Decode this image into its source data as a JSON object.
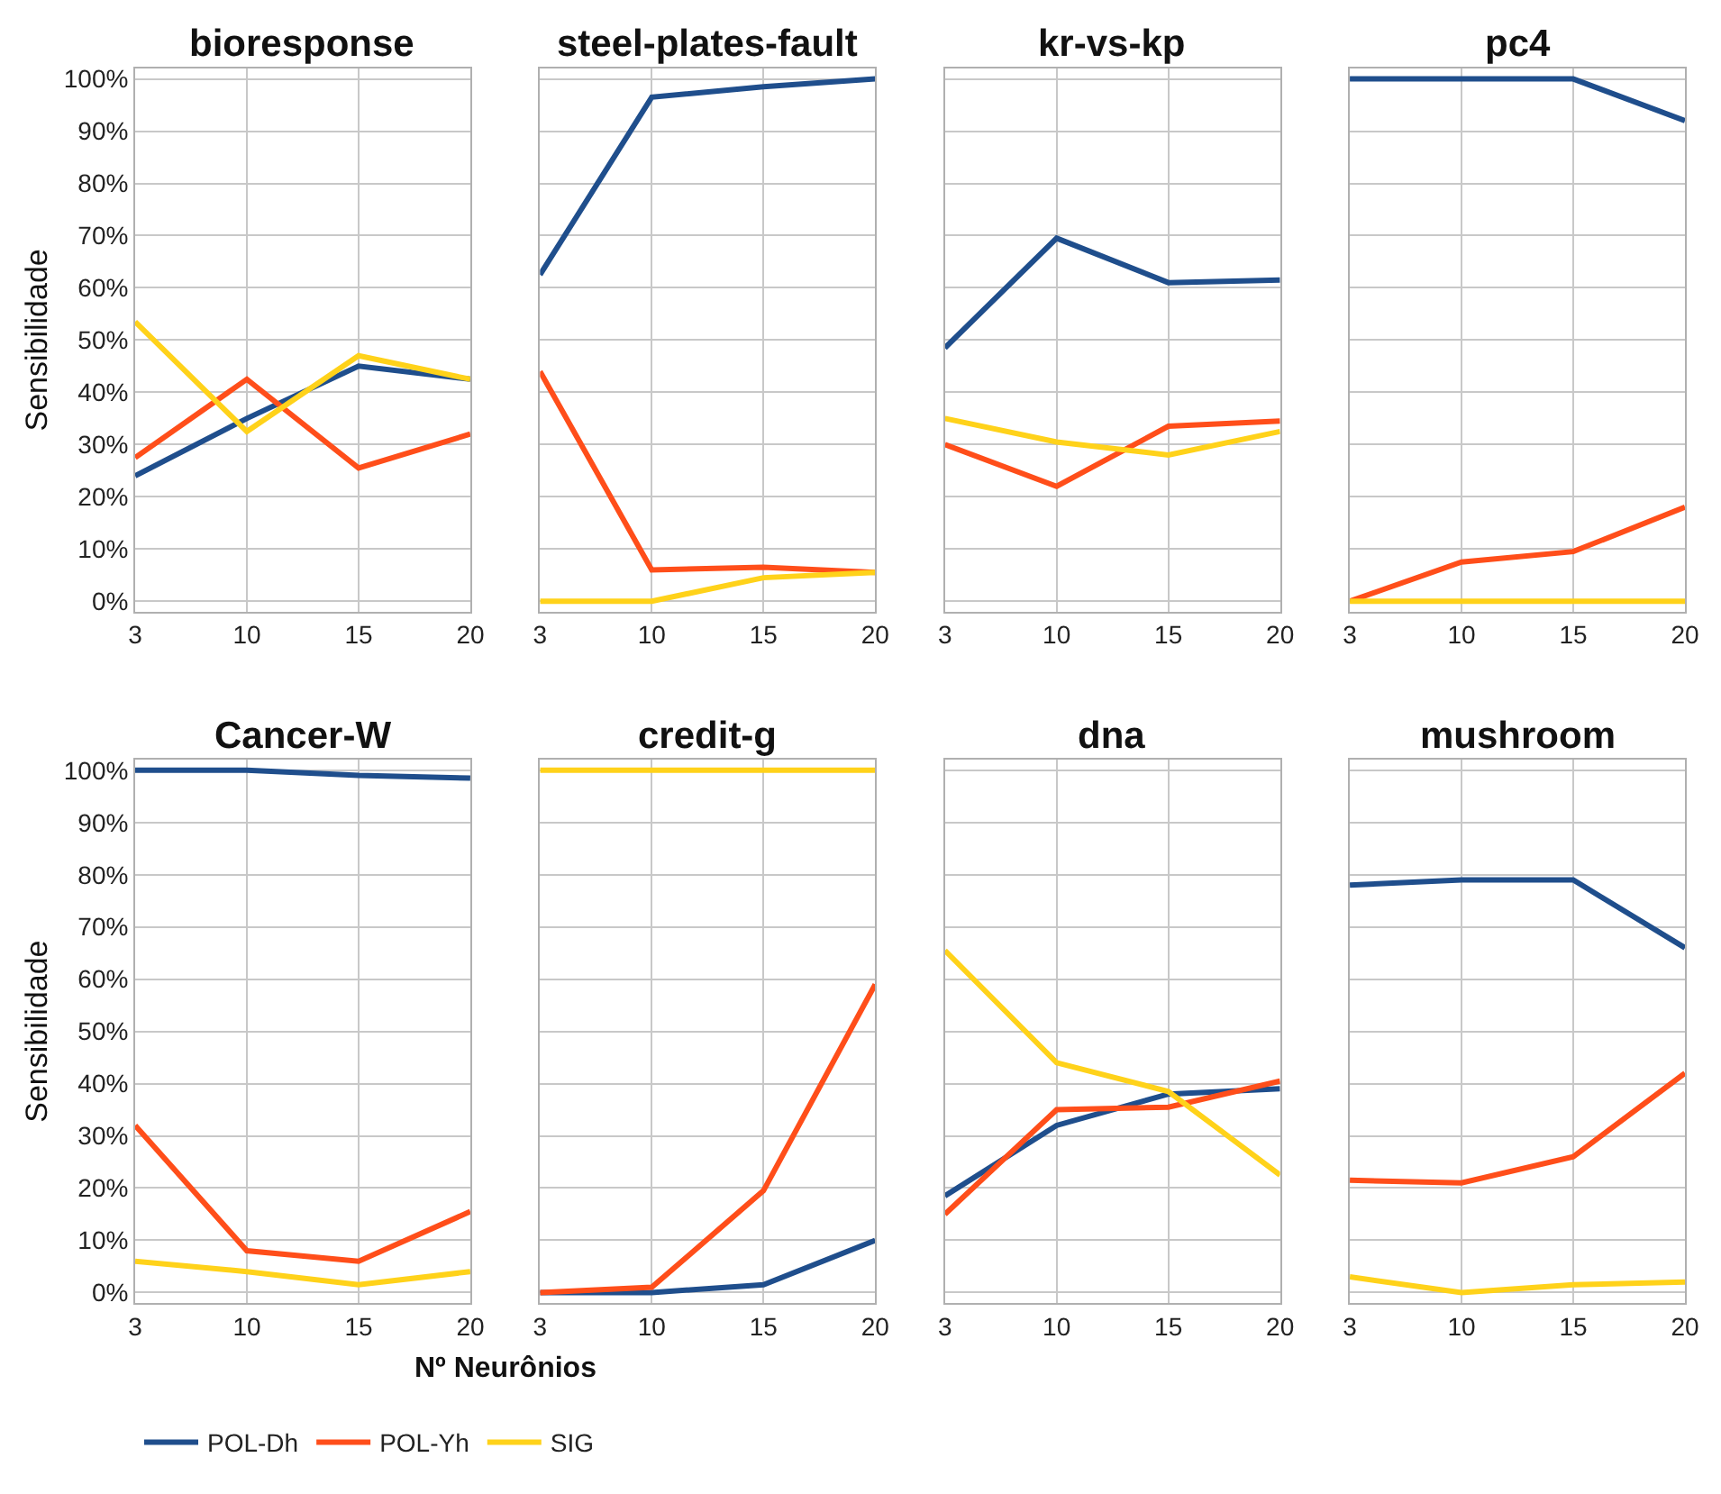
{
  "chart_data": [
    {
      "type": "line",
      "title": "bioresponse",
      "ylabel": "Sensibilidade",
      "categories": [
        "3",
        "10",
        "15",
        "20"
      ],
      "ylim": [
        -2,
        102
      ],
      "yticks": [
        {
          "value": 0,
          "label": "0%"
        },
        {
          "value": 10,
          "label": "10%"
        },
        {
          "value": 20,
          "label": "20%"
        },
        {
          "value": 30,
          "label": "30%"
        },
        {
          "value": 40,
          "label": "40%"
        },
        {
          "value": 50,
          "label": "50%"
        },
        {
          "value": 60,
          "label": "60%"
        },
        {
          "value": 70,
          "label": "70%"
        },
        {
          "value": 80,
          "label": "80%"
        },
        {
          "value": 90,
          "label": "90%"
        },
        {
          "value": 100,
          "label": "100%"
        }
      ],
      "grid": true,
      "legend": "bottom",
      "marker": "none",
      "series": [
        {
          "name": "POL-Dh",
          "color": "#1f4e8c",
          "values": [
            24,
            35,
            45,
            42.5
          ]
        },
        {
          "name": "POL-Yh",
          "color": "#ff4e1a",
          "values": [
            27.5,
            42.5,
            25.5,
            32
          ]
        },
        {
          "name": "SIG",
          "color": "#ffd21a",
          "values": [
            53.5,
            32.5,
            47,
            42.5
          ]
        }
      ]
    },
    {
      "type": "line",
      "title": "steel-plates-fault",
      "categories": [
        "3",
        "10",
        "15",
        "20"
      ],
      "ylim": [
        -2,
        102
      ],
      "yticks": [
        0,
        10,
        20,
        30,
        40,
        50,
        60,
        70,
        80,
        90,
        100
      ],
      "grid": true,
      "tick_labels": "x",
      "marker": "none",
      "series": [
        {
          "color": "#1f4e8c",
          "values": [
            62.5,
            96.5,
            98.5,
            100
          ]
        },
        {
          "color": "#ff4e1a",
          "values": [
            44,
            6,
            6.5,
            5.5
          ]
        },
        {
          "color": "#ffd21a",
          "values": [
            0,
            0,
            4.5,
            5.5
          ]
        }
      ]
    },
    {
      "type": "line",
      "title": "kr-vs-kp",
      "categories": [
        "3",
        "10",
        "15",
        "20"
      ],
      "ylim": [
        -2,
        102
      ],
      "yticks": [
        0,
        10,
        20,
        30,
        40,
        50,
        60,
        70,
        80,
        90,
        100
      ],
      "grid": true,
      "tick_labels": "x",
      "marker": "none",
      "series": [
        {
          "color": "#1f4e8c",
          "values": [
            48.5,
            69.5,
            61,
            61.5
          ]
        },
        {
          "color": "#ff4e1a",
          "values": [
            30,
            22,
            33.5,
            34.5
          ]
        },
        {
          "color": "#ffd21a",
          "values": [
            35,
            30.5,
            28,
            32.5
          ]
        }
      ]
    },
    {
      "type": "line",
      "title": "pc4",
      "categories": [
        "3",
        "10",
        "15",
        "20"
      ],
      "ylim": [
        -2,
        102
      ],
      "yticks": [
        0,
        10,
        20,
        30,
        40,
        50,
        60,
        70,
        80,
        90,
        100
      ],
      "grid": true,
      "tick_labels": "x",
      "marker": "none",
      "series": [
        {
          "color": "#1f4e8c",
          "values": [
            100,
            100,
            100,
            92
          ]
        },
        {
          "color": "#ff4e1a",
          "values": [
            0,
            7.5,
            9.5,
            18
          ]
        },
        {
          "color": "#ffd21a",
          "values": [
            0,
            0,
            0,
            0
          ]
        }
      ]
    },
    {
      "type": "line",
      "title": "Cancer-W",
      "ylabel": "Sensibilidade",
      "categories": [
        "3",
        "10",
        "15",
        "20"
      ],
      "ylim": [
        -2,
        102
      ],
      "yticks": [
        {
          "value": 0,
          "label": "0%"
        },
        {
          "value": 10,
          "label": "10%"
        },
        {
          "value": 20,
          "label": "20%"
        },
        {
          "value": 30,
          "label": "30%"
        },
        {
          "value": 40,
          "label": "40%"
        },
        {
          "value": 50,
          "label": "50%"
        },
        {
          "value": 60,
          "label": "60%"
        },
        {
          "value": 70,
          "label": "70%"
        },
        {
          "value": 80,
          "label": "80%"
        },
        {
          "value": 90,
          "label": "90%"
        },
        {
          "value": 100,
          "label": "100%"
        }
      ],
      "grid": true,
      "marker": "none",
      "series": [
        {
          "color": "#1f4e8c",
          "values": [
            100,
            100,
            99,
            98.5
          ]
        },
        {
          "color": "#ff4e1a",
          "values": [
            32,
            8,
            6,
            15.5
          ]
        },
        {
          "color": "#ffd21a",
          "values": [
            6,
            4,
            1.5,
            4
          ]
        }
      ]
    },
    {
      "type": "line",
      "title": "credit-g",
      "xlabel": "Nº Neurônios",
      "categories": [
        "3",
        "10",
        "15",
        "20"
      ],
      "ylim": [
        -2,
        102
      ],
      "yticks": [
        0,
        10,
        20,
        30,
        40,
        50,
        60,
        70,
        80,
        90,
        100
      ],
      "grid": true,
      "tick_labels": "x",
      "marker": "none",
      "series": [
        {
          "color": "#1f4e8c",
          "values": [
            0,
            0,
            1.5,
            10
          ]
        },
        {
          "color": "#ff4e1a",
          "values": [
            0,
            1,
            19.5,
            59
          ]
        },
        {
          "color": "#ffd21a",
          "values": [
            100,
            100,
            100,
            100
          ]
        }
      ]
    },
    {
      "type": "line",
      "title": "dna",
      "categories": [
        "3",
        "10",
        "15",
        "20"
      ],
      "ylim": [
        -2,
        102
      ],
      "yticks": [
        0,
        10,
        20,
        30,
        40,
        50,
        60,
        70,
        80,
        90,
        100
      ],
      "grid": true,
      "tick_labels": "x",
      "marker": "none",
      "series": [
        {
          "color": "#1f4e8c",
          "values": [
            18.5,
            32,
            38,
            39
          ]
        },
        {
          "color": "#ff4e1a",
          "values": [
            15,
            35,
            35.5,
            40.5
          ]
        },
        {
          "color": "#ffd21a",
          "values": [
            65.5,
            44,
            38.5,
            22.5
          ]
        }
      ]
    },
    {
      "type": "line",
      "title": "mushroom",
      "categories": [
        "3",
        "10",
        "15",
        "20"
      ],
      "ylim": [
        -2,
        102
      ],
      "yticks": [
        0,
        10,
        20,
        30,
        40,
        50,
        60,
        70,
        80,
        90,
        100
      ],
      "grid": true,
      "tick_labels": "x",
      "marker": "none",
      "series": [
        {
          "color": "#1f4e8c",
          "values": [
            78,
            79,
            79,
            66
          ]
        },
        {
          "color": "#ff4e1a",
          "values": [
            21.5,
            21,
            26,
            42
          ]
        },
        {
          "color": "#ffd21a",
          "values": [
            3,
            0,
            1.5,
            2
          ]
        }
      ]
    }
  ]
}
